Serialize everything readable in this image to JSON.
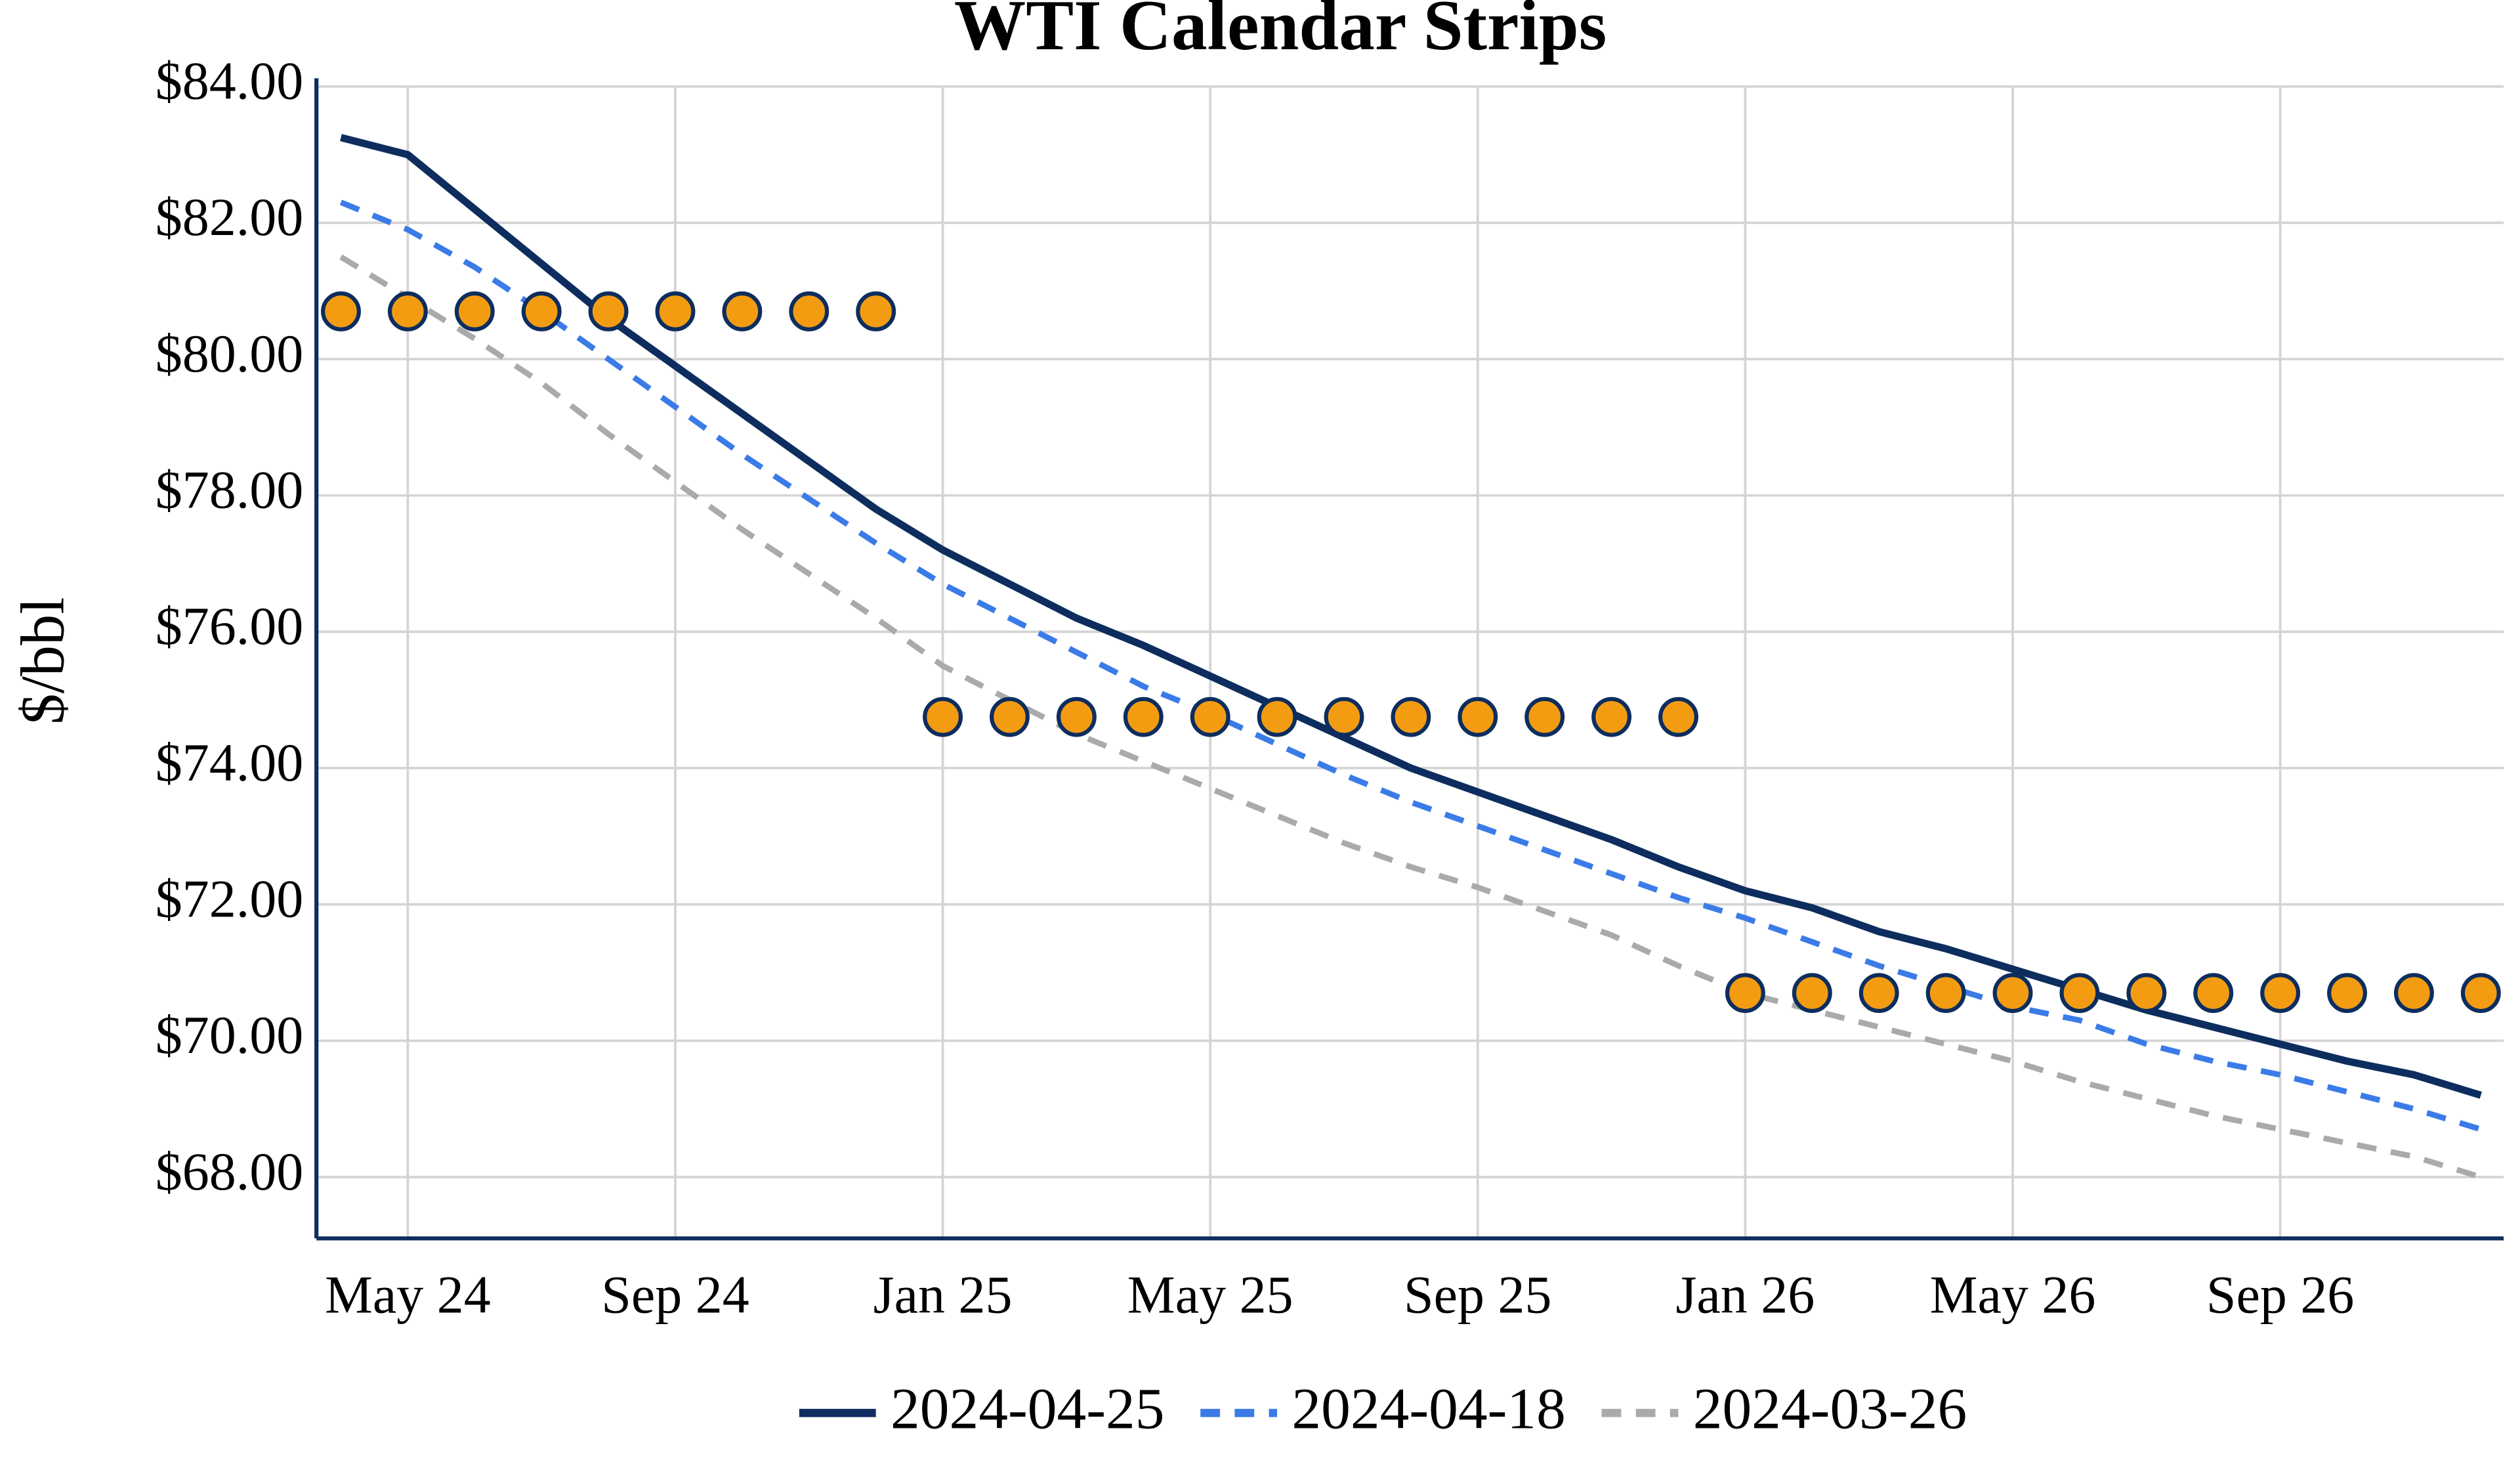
{
  "chart_data": {
    "type": "line",
    "title": "WTI Calendar Strips",
    "y_label": "$/bbl",
    "x": [
      "2024-04",
      "2024-05",
      "2024-06",
      "2024-07",
      "2024-08",
      "2024-09",
      "2024-10",
      "2024-11",
      "2024-12",
      "2025-01",
      "2025-02",
      "2025-03",
      "2025-04",
      "2025-05",
      "2025-06",
      "2025-07",
      "2025-08",
      "2025-09",
      "2025-10",
      "2025-11",
      "2025-12",
      "2026-01",
      "2026-02",
      "2026-03",
      "2026-04",
      "2026-05",
      "2026-06",
      "2026-07",
      "2026-08",
      "2026-09",
      "2026-10",
      "2026-11",
      "2026-12"
    ],
    "xticks": [
      {
        "value": "2024-05",
        "label": "May 24"
      },
      {
        "value": "2024-09",
        "label": "Sep 24"
      },
      {
        "value": "2025-01",
        "label": "Jan 25"
      },
      {
        "value": "2025-05",
        "label": "May 25"
      },
      {
        "value": "2025-09",
        "label": "Sep 25"
      },
      {
        "value": "2026-01",
        "label": "Jan 26"
      },
      {
        "value": "2026-05",
        "label": "May 26"
      },
      {
        "value": "2026-09",
        "label": "Sep 26"
      }
    ],
    "ylim": [
      67.1,
      84
    ],
    "yticks": [
      {
        "value": 68,
        "label": "$68.00"
      },
      {
        "value": 70,
        "label": "$70.00"
      },
      {
        "value": 72,
        "label": "$72.00"
      },
      {
        "value": 74,
        "label": "$74.00"
      },
      {
        "value": 76,
        "label": "$76.00"
      },
      {
        "value": 78,
        "label": "$78.00"
      },
      {
        "value": 80,
        "label": "$80.00"
      },
      {
        "value": 82,
        "label": "$82.00"
      },
      {
        "value": 84,
        "label": "$84.00"
      }
    ],
    "grid": true,
    "series": [
      {
        "name": "2024-04-25",
        "color": "#0d2d5e",
        "dash": "solid",
        "values": [
          83.25,
          83.0,
          82.2,
          81.4,
          80.6,
          79.9,
          79.2,
          78.5,
          77.8,
          77.2,
          76.7,
          76.2,
          75.8,
          75.35,
          74.9,
          74.45,
          74.0,
          73.65,
          73.3,
          72.95,
          72.55,
          72.2,
          71.95,
          71.6,
          71.35,
          71.05,
          70.75,
          70.45,
          70.2,
          69.95,
          69.7,
          69.5,
          69.2
        ]
      },
      {
        "name": "2024-04-18",
        "color": "#3b7be8",
        "dash": "dashed",
        "values": [
          82.3,
          81.9,
          81.35,
          80.7,
          80.0,
          79.3,
          78.6,
          77.95,
          77.3,
          76.7,
          76.2,
          75.7,
          75.2,
          74.8,
          74.35,
          73.9,
          73.5,
          73.15,
          72.8,
          72.45,
          72.1,
          71.8,
          71.45,
          71.1,
          70.8,
          70.5,
          70.3,
          69.95,
          69.7,
          69.5,
          69.25,
          69.0,
          68.7
        ]
      },
      {
        "name": "2024-03-26",
        "color": "#aaaaaa",
        "dash": "dashed",
        "values": [
          81.5,
          80.9,
          80.3,
          79.65,
          78.9,
          78.2,
          77.5,
          76.85,
          76.2,
          75.5,
          75.0,
          74.5,
          74.1,
          73.7,
          73.3,
          72.9,
          72.55,
          72.25,
          71.9,
          71.55,
          71.1,
          70.7,
          70.45,
          70.2,
          69.95,
          69.7,
          69.4,
          69.15,
          68.9,
          68.7,
          68.5,
          68.3,
          68.0
        ]
      }
    ],
    "markers": {
      "color": "#f39c12",
      "values": [
        80.7,
        80.7,
        80.7,
        80.7,
        80.7,
        80.7,
        80.7,
        80.7,
        80.7,
        74.75,
        74.75,
        74.75,
        74.75,
        74.75,
        74.75,
        74.75,
        74.75,
        74.75,
        74.75,
        74.75,
        74.75,
        70.7,
        70.7,
        70.7,
        70.7,
        70.7,
        70.7,
        70.7,
        70.7,
        70.7,
        70.7,
        70.7,
        70.7
      ]
    }
  }
}
